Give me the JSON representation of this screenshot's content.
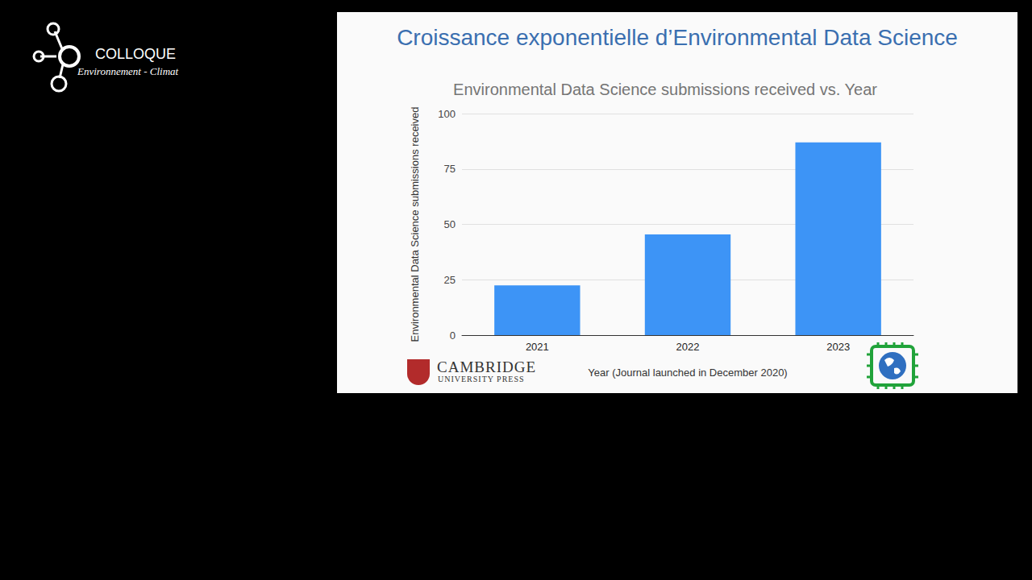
{
  "chart_data": {
    "type": "bar",
    "title": "Croissance exponentielle d’Environmental Data Science",
    "subtitle": "Environmental Data Science submissions received vs. Year",
    "x_label": "Year (Journal launched in December 2020)",
    "y_label": "Environmental Data Science submissions received",
    "categories": [
      "2021",
      "2022",
      "2023"
    ],
    "values": [
      22.5,
      45.5,
      87
    ],
    "color": "#3d94f6",
    "ylim": [
      0,
      100
    ],
    "yticks": [
      0,
      25,
      50,
      75,
      100
    ],
    "grid": true,
    "annotations": [
      "COLLOQUE",
      "Environnement - Climat",
      "CAMBRIDGE",
      "UNIVERSITY PRESS"
    ]
  }
}
